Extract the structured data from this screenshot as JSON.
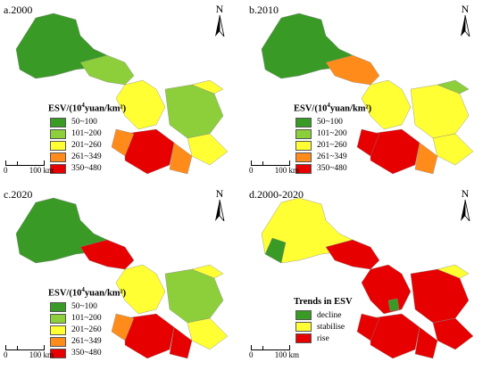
{
  "colors": {
    "c1": "#3a9a26",
    "c2": "#8ccf3a",
    "c3": "#ffff33",
    "c4": "#ff8c1a",
    "c5": "#e60000",
    "decline": "#3a9a26",
    "stabilise": "#ffff33",
    "rise": "#e60000",
    "border": "#555555"
  },
  "north_letter": "N",
  "scale": {
    "zero": "0",
    "dist": "100 km"
  },
  "panels": [
    {
      "title": "a.2000",
      "legend_title_prefix": "ESV/(10",
      "legend_title_sup": "4",
      "legend_title_suffix": "yuan/km²)",
      "legend": [
        {
          "label": "50~100",
          "color": "#3a9a26"
        },
        {
          "label": "101~200",
          "color": "#8ccf3a"
        },
        {
          "label": "201~260",
          "color": "#ffff33"
        },
        {
          "label": "261~349",
          "color": "#ff8c1a"
        },
        {
          "label": "350~480",
          "color": "#e60000"
        }
      ]
    },
    {
      "title": "b.2010",
      "legend_title_prefix": "ESV/(10",
      "legend_title_sup": "4",
      "legend_title_suffix": "yuan/km²)",
      "legend": [
        {
          "label": "50~100",
          "color": "#3a9a26"
        },
        {
          "label": "101~200",
          "color": "#8ccf3a"
        },
        {
          "label": "201~260",
          "color": "#ffff33"
        },
        {
          "label": "261~349",
          "color": "#ff8c1a"
        },
        {
          "label": "350~480",
          "color": "#e60000"
        }
      ]
    },
    {
      "title": "c.2020",
      "legend_title_prefix": "ESV/(10",
      "legend_title_sup": "4",
      "legend_title_suffix": "yuan/km²)",
      "legend": [
        {
          "label": "50~100",
          "color": "#3a9a26"
        },
        {
          "label": "101~200",
          "color": "#8ccf3a"
        },
        {
          "label": "201~260",
          "color": "#ffff33"
        },
        {
          "label": "261~349",
          "color": "#ff8c1a"
        },
        {
          "label": "350~480",
          "color": "#e60000"
        }
      ]
    },
    {
      "title": "d.2000-2020",
      "legend_title": "Trends in ESV",
      "legend": [
        {
          "label": "decline",
          "color": "#3a9a26"
        },
        {
          "label": "stabilise",
          "color": "#ffff33"
        },
        {
          "label": "rise",
          "color": "#e60000"
        }
      ]
    }
  ]
}
